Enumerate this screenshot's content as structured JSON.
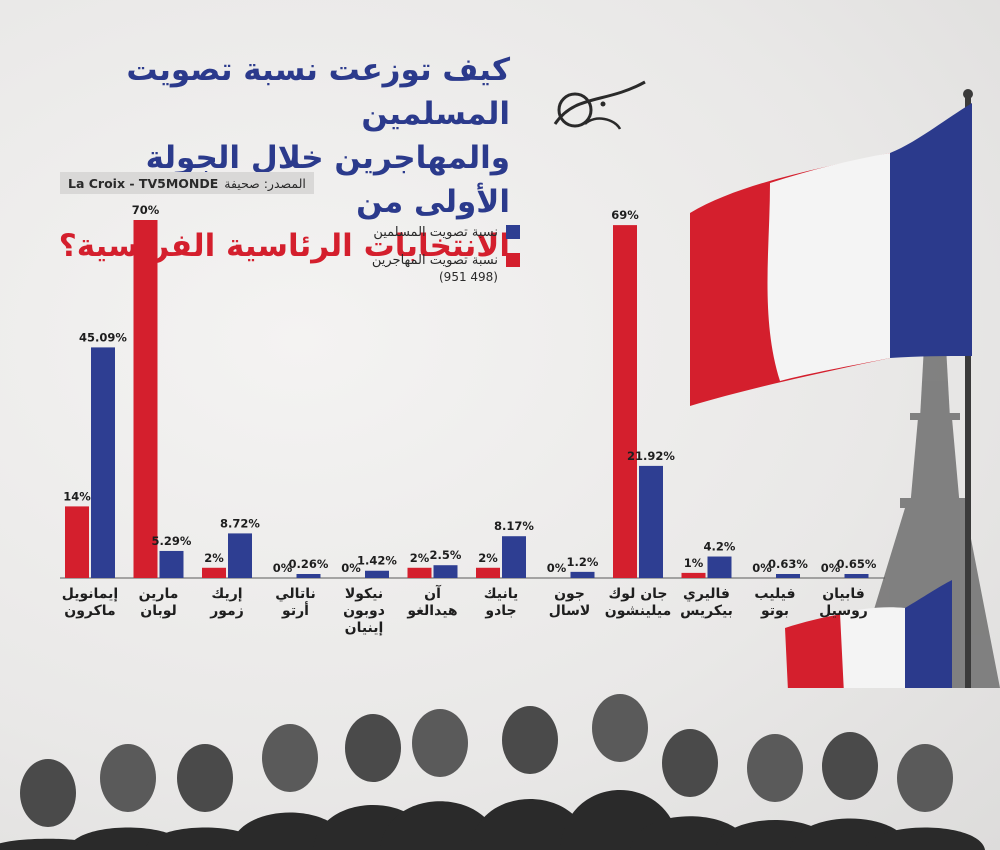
{
  "title": {
    "line1": "كيف توزعت نسبة تصويت المسلمين",
    "line2": "والمهاجرين خلال الجولة الأولى من",
    "line3": "الانتخابات الرئاسية الفرنسية؟"
  },
  "source": {
    "label": "المصدر: صحيفة",
    "value": "La Croix -  TV5MONDE"
  },
  "legend": {
    "muslims": "نسبة تصويت المسلمين",
    "immigrants": "نسبة تصويت المهاجرين",
    "note": "(951 498)"
  },
  "colors": {
    "red": "#d41f2d",
    "blue": "#2e3e92",
    "title_blue": "#2b3a8c"
  },
  "chart_data": {
    "type": "bar",
    "categories": [
      "إيمانويل ماكرون",
      "مارين لوبان",
      "إريك زمور",
      "ناتالي أرتو",
      "نيكولا دوبون إينيان",
      "آن هيدالغو",
      "يانيك جادو",
      "جون لاسال",
      "جان لوك ميلينشون",
      "فاليري بيكريس",
      "فيليب بوتو",
      "فابيان روسيل"
    ],
    "series": [
      {
        "name": "نسبة تصويت المهاجرين",
        "color": "#d41f2d",
        "values": [
          14,
          70,
          2,
          0,
          0,
          2,
          2,
          0,
          69,
          1,
          0,
          0
        ],
        "labels": [
          "14%",
          "70%",
          "2%",
          "0%",
          "0%",
          "2%",
          "2%",
          "0%",
          "69%",
          "1%",
          "0%",
          "0%"
        ]
      },
      {
        "name": "نسبة تصويت المسلمين",
        "color": "#2e3e92",
        "values": [
          45.09,
          5.29,
          8.72,
          0.26,
          1.42,
          2.5,
          8.17,
          1.2,
          21.92,
          4.2,
          0.63,
          0.65
        ],
        "labels": [
          "45.09%",
          "5.29%",
          "8.72%",
          "0.26%",
          "1.42%",
          "2.5%",
          "8.17%",
          "1.2%",
          "21.92%",
          "4.2%",
          "0.63%",
          "0.65%"
        ]
      }
    ],
    "ylim": [
      0,
      70
    ],
    "grid": false,
    "legend_position": "top-center"
  },
  "candidates_lines": [
    [
      "إيمانويل",
      "ماكرون"
    ],
    [
      "مارين",
      "لوبان"
    ],
    [
      "إريك",
      "زمور"
    ],
    [
      "ناتالي",
      "أرتو"
    ],
    [
      "نيكولا",
      "دوبون",
      "إينيان"
    ],
    [
      "آن",
      "هيدالغو"
    ],
    [
      "يانيك",
      "جادو"
    ],
    [
      "جون",
      "لاسال"
    ],
    [
      "جان لوك",
      "ميلينشون"
    ],
    [
      "فاليري",
      "بيكريس"
    ],
    [
      "فيليب",
      "بوتو"
    ],
    [
      "فابيان",
      "روسيل"
    ]
  ]
}
